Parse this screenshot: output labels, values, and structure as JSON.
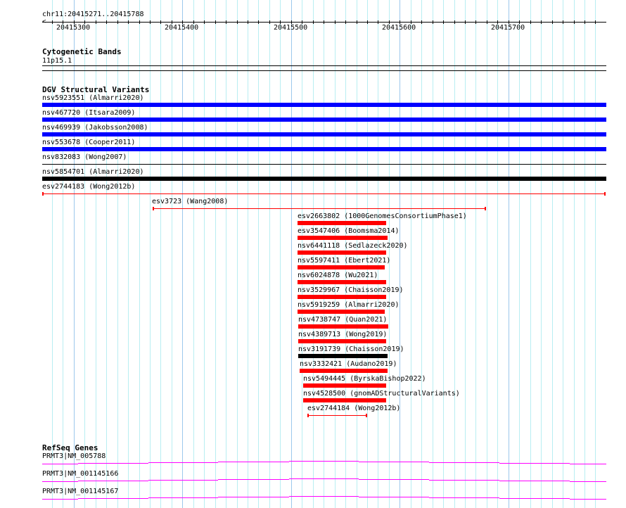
{
  "location": "chr11:20415271..20415788",
  "ruler": {
    "start": 20415271,
    "end": 20415788,
    "labels": [
      "20415300",
      "20415400",
      "20415500",
      "20415600",
      "20415700"
    ]
  },
  "tracks": {
    "cyto": {
      "title": "Cytogenetic Bands",
      "band": "11p15.1"
    },
    "dgv": {
      "title": "DGV Structural Variants",
      "features": [
        {
          "label": "nsv5923551 (Almarri2020)",
          "color": "#0000ff"
        },
        {
          "label": "nsv467720 (Itsara2009)",
          "color": "#0000ff"
        },
        {
          "label": "nsv469939 (Jakobsson2008)",
          "color": "#0000ff"
        },
        {
          "label": "nsv553678 (Cooper2011)",
          "color": "#0000ff"
        },
        {
          "label": "nsv832083 (Wong2007)",
          "color": "#000000"
        },
        {
          "label": "nsv5854701 (Almarri2020)",
          "color": "#000000"
        },
        {
          "label": "esv2744183 (Wong2012b)",
          "color": "#ff0000"
        },
        {
          "label": "esv3723 (Wang2008)",
          "color": "#ff0000"
        },
        {
          "label": "esv2663802 (1000GenomesConsortiumPhase1)",
          "color": "#ff0000"
        },
        {
          "label": "esv3547406 (Boomsma2014)",
          "color": "#ff0000"
        },
        {
          "label": "nsv6441118 (Sedlazeck2020)",
          "color": "#ff0000"
        },
        {
          "label": "nsv5597411 (Ebert2021)",
          "color": "#ff0000"
        },
        {
          "label": "nsv6024878 (Wu2021)",
          "color": "#ff0000"
        },
        {
          "label": "nsv3529967 (Chaisson2019)",
          "color": "#ff0000"
        },
        {
          "label": "nsv5919259 (Almarri2020)",
          "color": "#ff0000"
        },
        {
          "label": "nsv4738747 (Quan2021)",
          "color": "#ff0000"
        },
        {
          "label": "nsv4389713 (Wong2019)",
          "color": "#ff0000"
        },
        {
          "label": "nsv3191739 (Chaisson2019)",
          "color": "#000000"
        },
        {
          "label": "nsv3332421 (Audano2019)",
          "color": "#ff0000"
        },
        {
          "label": "nsv5494445 (ByrskaBishop2022)",
          "color": "#ff0000"
        },
        {
          "label": "nsv4528500 (gnomADStructuralVariants)",
          "color": "#ff0000"
        },
        {
          "label": "esv2744184 (Wong2012b)",
          "color": "#ff0000"
        }
      ]
    },
    "refseq": {
      "title": "RefSeq Genes",
      "color": "#ff00ff",
      "genes": [
        {
          "label": "PRMT3|NM_005788"
        },
        {
          "label": "PRMT3|NM_001145166"
        },
        {
          "label": "PRMT3|NM_001145167"
        }
      ]
    }
  }
}
